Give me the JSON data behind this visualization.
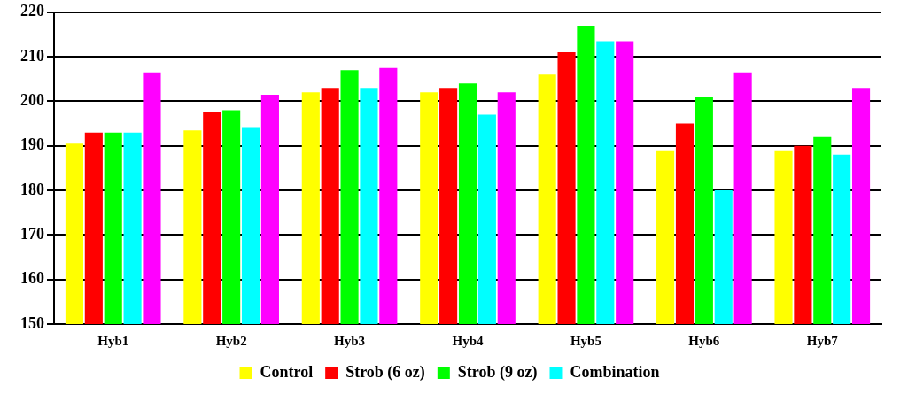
{
  "chart_data": {
    "type": "bar",
    "categories": [
      "Hyb1",
      "Hyb2",
      "Hyb3",
      "Hyb4",
      "Hyb5",
      "Hyb6",
      "Hyb7"
    ],
    "series": [
      {
        "name": "Control",
        "color": "#ffff00",
        "values": [
          190.5,
          193.5,
          202,
          202,
          206,
          189,
          189
        ]
      },
      {
        "name": "Strob (6 oz)",
        "color": "#ff0000",
        "values": [
          193,
          197.5,
          203,
          203,
          211,
          195,
          190
        ]
      },
      {
        "name": "Strob (9 oz)",
        "color": "#00ff00",
        "values": [
          193,
          198,
          207,
          204,
          217,
          201,
          192
        ]
      },
      {
        "name": "Combination",
        "color": "#00ffff",
        "values": [
          193,
          194,
          203,
          197,
          213.5,
          180,
          188
        ]
      },
      {
        "color": "#ff00ff",
        "values": [
          206.5,
          201.5,
          207.5,
          202,
          213.5,
          206.5,
          203
        ]
      }
    ],
    "ylim": [
      150,
      220
    ],
    "yticks": [
      150,
      160,
      170,
      180,
      190,
      200,
      210,
      220
    ],
    "grid": "y",
    "legend": "bottom"
  }
}
